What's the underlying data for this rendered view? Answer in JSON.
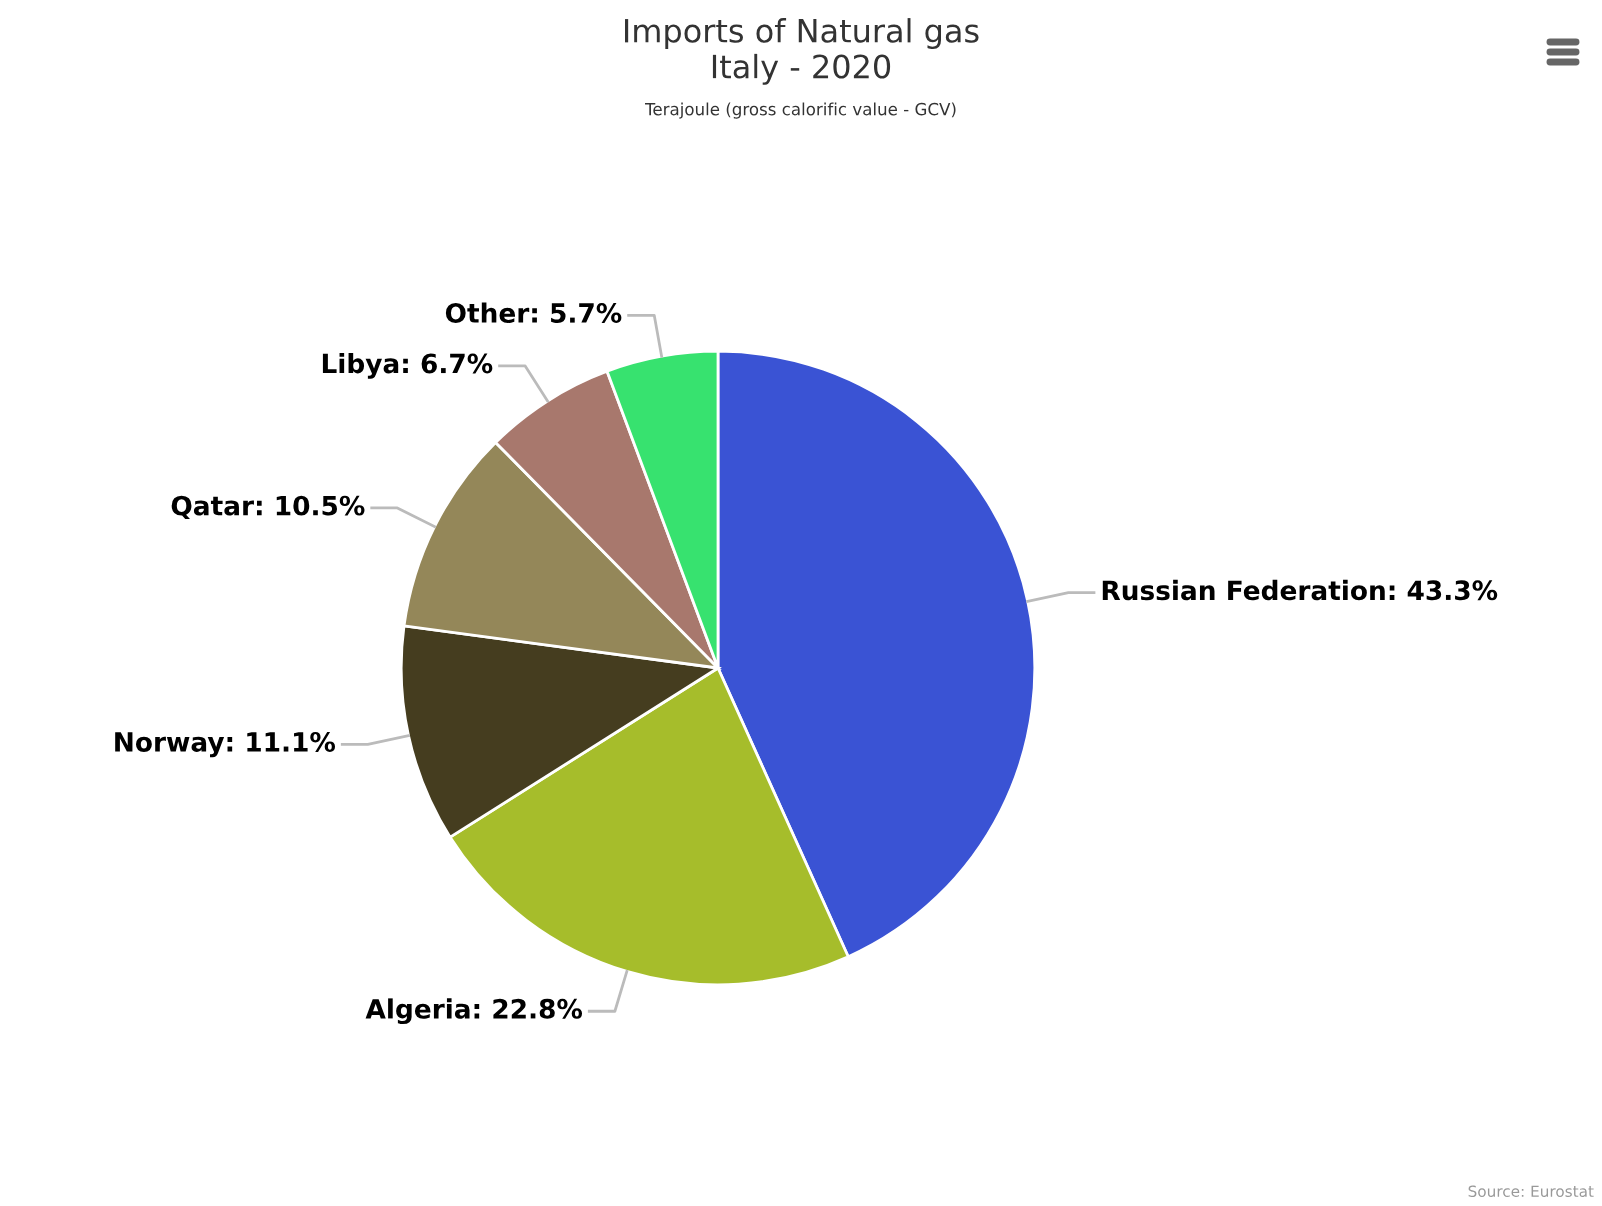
{
  "chart_data": {
    "type": "pie",
    "title": "Imports of Natural gas\nItaly - 2020",
    "subtitle": "Terajoule (gross calorific value - GCV)",
    "categories": [
      "Russian Federation",
      "Algeria",
      "Norway",
      "Qatar",
      "Libya",
      "Other"
    ],
    "values": [
      43.3,
      22.8,
      11.1,
      10.5,
      6.7,
      5.7
    ],
    "colors": [
      "#3a53d4",
      "#a6bd2b",
      "#453d1f",
      "#948759",
      "#a8786d",
      "#37e26f"
    ],
    "value_labels": [
      "43.3%",
      "22.8%",
      "11.1%",
      "10.5%",
      "6.7%",
      "5.7%"
    ],
    "annotations": [
      "Source: Eurostat"
    ],
    "legend": false
  }
}
